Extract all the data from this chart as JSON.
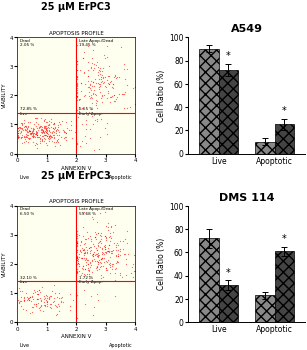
{
  "title_top": "25 μM ErPC3",
  "title_bottom": "25 μM ErPC3",
  "chart_title_top": "A549",
  "chart_title_bottom": "DMS 114",
  "ylabel": "Cell Ratio (%)",
  "A549": {
    "live_ctrl": 90.0,
    "live_treat": 72.0,
    "apop_ctrl": 10.0,
    "apop_treat": 25.0,
    "live_ctrl_err": 3.0,
    "live_treat_err": 5.0,
    "apop_ctrl_err": 3.0,
    "apop_treat_err": 5.0,
    "ylim": [
      0,
      100
    ],
    "yticks": [
      0,
      20,
      40,
      60,
      80,
      100
    ]
  },
  "DMS114": {
    "live_ctrl": 72.0,
    "live_treat": 32.0,
    "apop_ctrl": 23.0,
    "apop_treat": 61.0,
    "live_ctrl_err": 8.0,
    "live_treat_err": 4.0,
    "apop_ctrl_err": 3.0,
    "apop_treat_err": 4.0,
    "ylim": [
      0,
      100
    ],
    "yticks": [
      0,
      20,
      40,
      60,
      80,
      100
    ]
  },
  "scatter_top": {
    "title": "APOPTOSIS PROFILE",
    "quadrant_labels_tl": "Dead\n2.05 %",
    "quadrant_labels_tr": "Late Apop./Dead\n19.45 %",
    "quadrant_labels_bl": "72.85 %\nLive",
    "quadrant_labels_br": "5.65 %\nEarly Apop.",
    "xlabel": "ANNEXIN V",
    "ylabel": "VIABILITY",
    "xlim": [
      0,
      4
    ],
    "ylim": [
      0,
      4
    ],
    "xticks": [
      0,
      1,
      2,
      3,
      4
    ],
    "yticks": [
      0,
      1,
      2,
      3,
      4
    ],
    "bg_color": "#fffff0",
    "line_color": "red",
    "line_x": 2.0,
    "line_y": 1.4,
    "n_live": 280,
    "n_late": 180,
    "n_early": 25
  },
  "scatter_bottom": {
    "title": "APOPTOSIS PROFILE",
    "quadrant_labels_tl": "Dead\n6.50 %",
    "quadrant_labels_tr": "Late Apop./Dead\n59.68 %",
    "quadrant_labels_bl": "32.10 %\nLive",
    "quadrant_labels_br": "1.72 %\nEarly Apop.",
    "xlabel": "ANNEXIN V",
    "ylabel": "VIABILITY",
    "xlim": [
      0,
      4
    ],
    "ylim": [
      0,
      4
    ],
    "xticks": [
      0,
      1,
      2,
      3,
      4
    ],
    "yticks": [
      0,
      1,
      2,
      3,
      4
    ],
    "bg_color": "#fffff0",
    "line_color": "red",
    "line_x": 2.0,
    "line_y": 1.4,
    "n_live": 120,
    "n_late": 320,
    "n_early": 10
  }
}
